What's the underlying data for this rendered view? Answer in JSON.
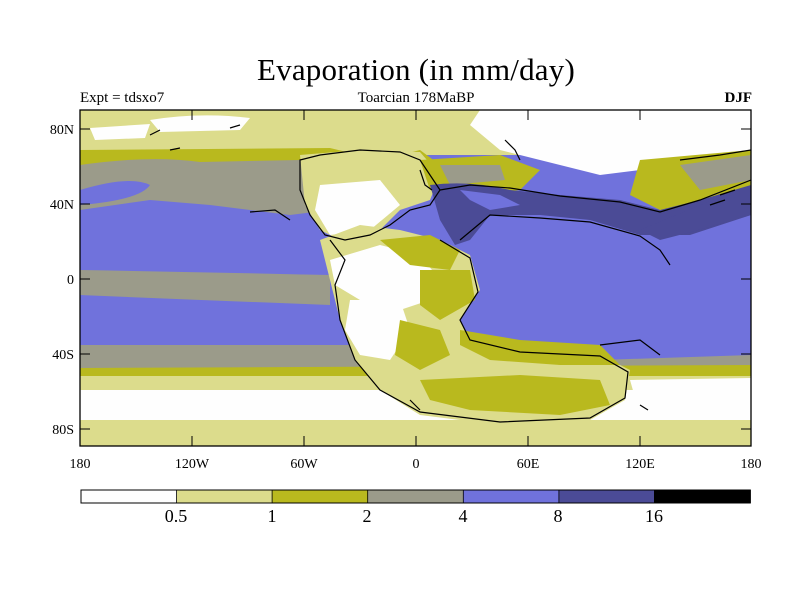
{
  "title": "Evaporation (in mm/day)",
  "subtitle_left": "Expt = tdsxo7",
  "subtitle_center": "Toarcian 178MaBP",
  "subtitle_right": "DJF",
  "lat_ticks": [
    "80N",
    "40N",
    "0",
    "40S",
    "80S"
  ],
  "lon_ticks": [
    "180",
    "120W",
    "60W",
    "0",
    "60E",
    "120E",
    "180"
  ],
  "legend": {
    "labels": [
      "0.5",
      "1",
      "2",
      "4",
      "8",
      "16"
    ],
    "colors": [
      "#fefefe",
      "#dcdc8c",
      "#b9b91e",
      "#9b9b8a",
      "#7072dc",
      "#4b4b96",
      "#000000"
    ]
  },
  "chart_data": {
    "type": "heatmap",
    "variable": "Evaporation",
    "units": "mm/day",
    "levels": [
      0.5,
      1,
      2,
      4,
      8,
      16
    ],
    "lat_range": [
      -90,
      90
    ],
    "lon_range": [
      -180,
      180
    ]
  }
}
